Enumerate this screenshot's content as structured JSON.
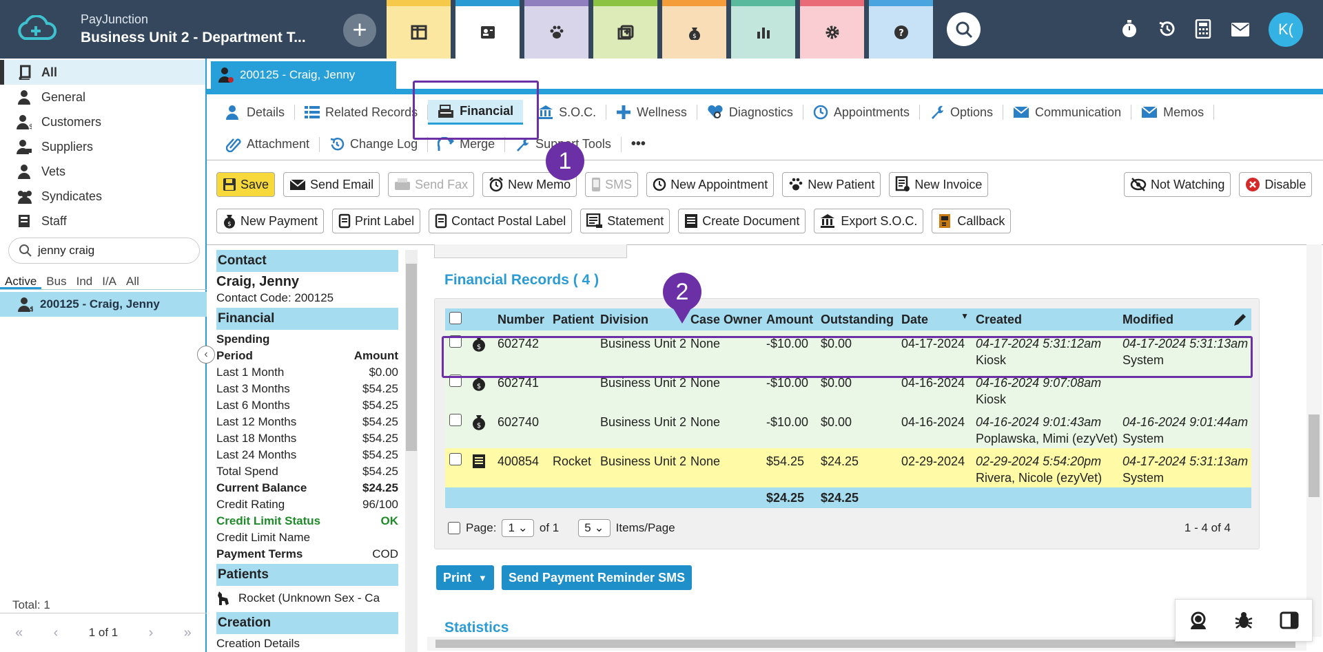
{
  "app": {
    "brand": "PayJunction",
    "unit": "Business Unit 2 - Department T...",
    "avatar": "K("
  },
  "nav_tabs": [
    {
      "icon": "columns-icon",
      "color": "#fbe7a0",
      "border": "#f6c94b"
    },
    {
      "icon": "contact-card-icon",
      "color": "#ffffff",
      "border": "#2b9bd3"
    },
    {
      "icon": "paw-icon",
      "color": "#d8d4ea",
      "border": "#8f7fbf"
    },
    {
      "icon": "add-record-icon",
      "color": "#dcebb8",
      "border": "#8cc342"
    },
    {
      "icon": "money-bag-icon",
      "color": "#f8ddb6",
      "border": "#f39c39"
    },
    {
      "icon": "bar-chart-icon",
      "color": "#c3e6dc",
      "border": "#58b99c"
    },
    {
      "icon": "gear-icon",
      "color": "#f9cdd2",
      "border": "#ea6b78"
    },
    {
      "icon": "help-icon",
      "color": "#c7e2f6",
      "border": "#4aa4e0"
    }
  ],
  "sidebar": {
    "items": [
      {
        "label": "All",
        "icon": "book-icon"
      },
      {
        "label": "General",
        "icon": "person-icon"
      },
      {
        "label": "Customers",
        "icon": "customer-icon"
      },
      {
        "label": "Suppliers",
        "icon": "supplier-icon"
      },
      {
        "label": "Vets",
        "icon": "vet-icon"
      },
      {
        "label": "Syndicates",
        "icon": "group-icon"
      },
      {
        "label": "Staff",
        "icon": "staff-icon"
      }
    ],
    "search_value": "jenny craig",
    "filters": [
      "Active",
      "Bus",
      "Ind",
      "I/A",
      "All"
    ],
    "result": "200125 - Craig, Jenny",
    "total_label": "Total:",
    "total_value": "1",
    "page": "1 of 1"
  },
  "record_tab": "200125 - Craig, Jenny",
  "subtabs": {
    "details": "Details",
    "related": "Related Records",
    "financial": "Financial",
    "soc": "S.O.C.",
    "wellness": "Wellness",
    "diagnostics": "Diagnostics",
    "appointments": "Appointments",
    "options": "Options",
    "communication": "Communication",
    "memos": "Memos",
    "attachment": "Attachment",
    "changelog": "Change Log",
    "merge": "Merge",
    "support": "Support Tools",
    "more": "•••"
  },
  "actions": {
    "save": "Save",
    "send_email": "Send Email",
    "send_fax": "Send Fax",
    "new_memo": "New Memo",
    "sms": "SMS",
    "new_appointment": "New Appointment",
    "new_patient": "New Patient",
    "new_invoice": "New Invoice",
    "not_watching": "Not Watching",
    "disable": "Disable",
    "new_payment": "New Payment",
    "print_label": "Print Label",
    "contact_postal": "Contact Postal Label",
    "statement": "Statement",
    "create_document": "Create Document",
    "export_soc": "Export S.O.C.",
    "callback": "Callback"
  },
  "left_panel": {
    "contact_h": "Contact",
    "name": "Craig, Jenny",
    "code": "Contact Code: 200125",
    "financial_h": "Financial",
    "spending": "Spending",
    "period_h": "Period",
    "amount_h": "Amount",
    "rows": [
      {
        "k": "Last 1 Month",
        "v": "$0.00"
      },
      {
        "k": "Last 3 Months",
        "v": "$54.25"
      },
      {
        "k": "Last 6 Months",
        "v": "$54.25"
      },
      {
        "k": "Last 12 Months",
        "v": "$54.25"
      },
      {
        "k": "Last 18 Months",
        "v": "$54.25"
      },
      {
        "k": "Last 24 Months",
        "v": "$54.25"
      },
      {
        "k": "Total Spend",
        "v": "$54.25"
      }
    ],
    "balance_k": "Current Balance",
    "balance_v": "$24.25",
    "rating_k": "Credit Rating",
    "rating_v": "96/100",
    "limit_status_k": "Credit Limit Status",
    "limit_status_v": "OK",
    "limit_name_k": "Credit Limit Name",
    "terms_k": "Payment Terms",
    "terms_v": "COD",
    "patients_h": "Patients",
    "patient": "Rocket (Unknown Sex - Ca",
    "creation_h": "Creation",
    "creation_details": "Creation Details"
  },
  "financial": {
    "title": "Financial Records ( 4 )",
    "columns": [
      "Number",
      "Patient",
      "Division",
      "Case Owner",
      "Amount",
      "Outstanding",
      "Date",
      "Created",
      "Modified"
    ],
    "rows": [
      {
        "number": "602742",
        "patient": "",
        "division": "Business Unit 2",
        "owner": "None",
        "amount": "-$10.00",
        "outstanding": "$0.00",
        "date": "04-17-2024",
        "created": "04-17-2024 5:31:12am",
        "created_by": "Kiosk",
        "modified": "04-17-2024 5:31:13am",
        "modified_by": "System",
        "type": "payment"
      },
      {
        "number": "602741",
        "patient": "",
        "division": "Business Unit 2",
        "owner": "None",
        "amount": "-$10.00",
        "outstanding": "$0.00",
        "date": "04-16-2024",
        "created": "04-16-2024 9:07:08am",
        "created_by": "Kiosk",
        "modified": "",
        "modified_by": "",
        "type": "payment"
      },
      {
        "number": "602740",
        "patient": "",
        "division": "Business Unit 2",
        "owner": "None",
        "amount": "-$10.00",
        "outstanding": "$0.00",
        "date": "04-16-2024",
        "created": "04-16-2024 9:01:43am",
        "created_by": "Poplawska, Mimi (ezyVet)",
        "modified": "04-16-2024 9:01:44am",
        "modified_by": "System",
        "type": "payment"
      },
      {
        "number": "400854",
        "patient": "Rocket",
        "division": "Business Unit 2",
        "owner": "None",
        "amount": "$54.25",
        "outstanding": "$24.25",
        "date": "02-29-2024",
        "created": "02-29-2024 5:54:20pm",
        "created_by": "Rivera, Nicole (ezyVet)",
        "modified": "04-17-2024 5:31:13am",
        "modified_by": "System",
        "type": "invoice"
      }
    ],
    "total_amount": "$24.25",
    "total_outstanding": "$24.25",
    "page_label": "Page:",
    "page_value": "1",
    "of_label": "of 1",
    "per_page": "5",
    "items_label": "Items/Page",
    "range": "1 - 4 of 4"
  },
  "print_label": "Print",
  "reminder_label": "Send Payment Reminder SMS",
  "statistics": "Statistics",
  "annotations": [
    "1",
    "2"
  ]
}
